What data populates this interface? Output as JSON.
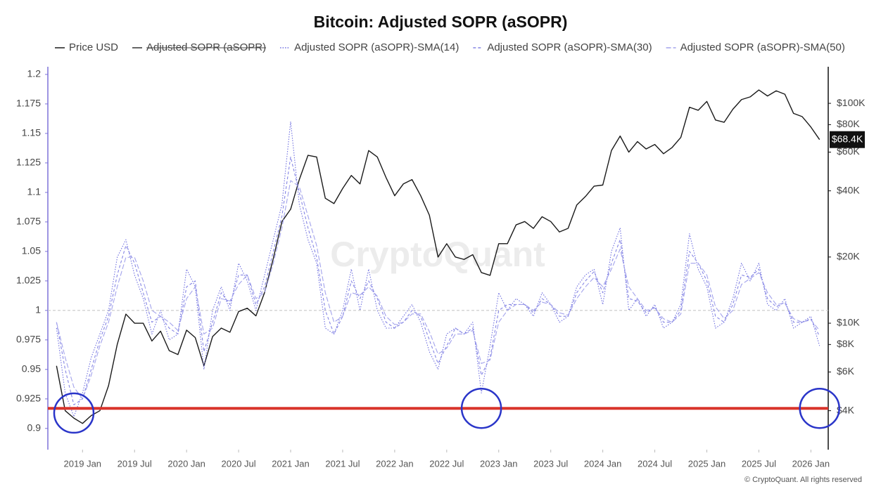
{
  "chart_data": {
    "type": "line",
    "title": "Bitcoin: Adjusted SOPR (aSOPR)",
    "watermark": "CryptoQuant",
    "footer": "© CryptoQuant. All rights reserved",
    "x": [
      "2018-10",
      "2018-11",
      "2018-12",
      "2019-01",
      "2019-02",
      "2019-03",
      "2019-04",
      "2019-05",
      "2019-06",
      "2019-07",
      "2019-08",
      "2019-09",
      "2019-10",
      "2019-11",
      "2019-12",
      "2020-01",
      "2020-02",
      "2020-03",
      "2020-04",
      "2020-05",
      "2020-06",
      "2020-07",
      "2020-08",
      "2020-09",
      "2020-10",
      "2020-11",
      "2020-12",
      "2021-01",
      "2021-02",
      "2021-03",
      "2021-04",
      "2021-05",
      "2021-06",
      "2021-07",
      "2021-08",
      "2021-09",
      "2021-10",
      "2021-11",
      "2021-12",
      "2022-01",
      "2022-02",
      "2022-03",
      "2022-04",
      "2022-05",
      "2022-06",
      "2022-07",
      "2022-08",
      "2022-09",
      "2022-10",
      "2022-11",
      "2022-12",
      "2023-01",
      "2023-02",
      "2023-03",
      "2023-04",
      "2023-05",
      "2023-06",
      "2023-07",
      "2023-08",
      "2023-09",
      "2023-10",
      "2023-11",
      "2023-12",
      "2024-01",
      "2024-02",
      "2024-03",
      "2024-04",
      "2024-05",
      "2024-06",
      "2024-07",
      "2024-08",
      "2024-09",
      "2024-10",
      "2024-11",
      "2024-12",
      "2025-01",
      "2025-02",
      "2025-03",
      "2025-04",
      "2025-05",
      "2025-06",
      "2025-07",
      "2025-08",
      "2025-09",
      "2025-10",
      "2025-11",
      "2025-12",
      "2026-01",
      "2026-02"
    ],
    "xlim": [
      "2018-09",
      "2026-03"
    ],
    "xticks": [
      {
        "value": "2019-01",
        "label": "2019 Jan"
      },
      {
        "value": "2019-07",
        "label": "2019 Jul"
      },
      {
        "value": "2020-01",
        "label": "2020 Jan"
      },
      {
        "value": "2020-07",
        "label": "2020 Jul"
      },
      {
        "value": "2021-01",
        "label": "2021 Jan"
      },
      {
        "value": "2021-07",
        "label": "2021 Jul"
      },
      {
        "value": "2022-01",
        "label": "2022 Jan"
      },
      {
        "value": "2022-07",
        "label": "2022 Jul"
      },
      {
        "value": "2023-01",
        "label": "2023 Jan"
      },
      {
        "value": "2023-07",
        "label": "2023 Jul"
      },
      {
        "value": "2024-01",
        "label": "2024 Jan"
      },
      {
        "value": "2024-07",
        "label": "2024 Jul"
      },
      {
        "value": "2025-01",
        "label": "2025 Jan"
      },
      {
        "value": "2025-07",
        "label": "2025 Jul"
      },
      {
        "value": "2026-01",
        "label": "2026 Jan"
      }
    ],
    "ylim": [
      0.882,
      1.2065
    ],
    "yticks": [
      0.9,
      0.925,
      0.95,
      0.975,
      1,
      1.025,
      1.05,
      1.075,
      1.1,
      1.125,
      1.15,
      1.175,
      1.2
    ],
    "y2scale": "log",
    "y2lim": [
      2660,
      146700
    ],
    "y2ticks": [
      {
        "value": 4000,
        "label": "$4K"
      },
      {
        "value": 6000,
        "label": "$6K"
      },
      {
        "value": 8000,
        "label": "$8K"
      },
      {
        "value": 10000,
        "label": "$10K"
      },
      {
        "value": 20000,
        "label": "$20K"
      },
      {
        "value": 40000,
        "label": "$40K"
      },
      {
        "value": 60000,
        "label": "$60K"
      },
      {
        "value": 80000,
        "label": "$80K"
      },
      {
        "value": 100000,
        "label": "$100K"
      }
    ],
    "last_price": {
      "value": 68400,
      "label": "$68.4K"
    },
    "reference_lines": [
      {
        "value": 1,
        "color": "#c8c8c8",
        "dash": "dashed"
      },
      {
        "value": 0.917,
        "color": "#d9352c",
        "dash": "solid"
      }
    ],
    "circles": [
      {
        "x": "2018-12",
        "y": 0.913,
        "color": "#2a35c9"
      },
      {
        "x": "2022-11",
        "y": 0.917,
        "color": "#2a35c9"
      },
      {
        "x": "2026-02",
        "y": 0.917,
        "color": "#2a35c9"
      }
    ],
    "series": [
      {
        "name": "Price USD",
        "color": "#1a1a1a",
        "dash": "solid",
        "axis": "y2",
        "values": [
          6400,
          4000,
          3700,
          3500,
          3800,
          4000,
          5200,
          8000,
          11000,
          10000,
          10000,
          8300,
          9200,
          7500,
          7200,
          9300,
          8600,
          6400,
          8700,
          9500,
          9100,
          11300,
          11700,
          10800,
          13800,
          19700,
          29000,
          33000,
          45000,
          58000,
          57000,
          37000,
          35000,
          41000,
          47000,
          43000,
          61000,
          57000,
          46000,
          38000,
          43000,
          45000,
          38000,
          31000,
          20000,
          23000,
          20000,
          19500,
          20500,
          17000,
          16500,
          23000,
          23000,
          28000,
          29000,
          27000,
          30500,
          29000,
          26000,
          27000,
          34500,
          37700,
          42000,
          42500,
          61000,
          71000,
          60000,
          67000,
          62000,
          65000,
          59000,
          63000,
          70000,
          96000,
          93000,
          102000,
          84000,
          82000,
          94000,
          104000,
          107000,
          115000,
          108000,
          114000,
          110000,
          90000,
          87000,
          78000,
          68400
        ]
      },
      {
        "name": "Adjusted SOPR (aSOPR)",
        "color": "#333333",
        "dash": "solid",
        "visible": false
      },
      {
        "name": "Adjusted SOPR (aSOPR)-SMA(14)",
        "color": "#6f6fe0",
        "dash": "dotted",
        "values": [
          0.985,
          0.93,
          0.91,
          0.93,
          0.96,
          0.98,
          1.0,
          1.045,
          1.06,
          1.03,
          1.01,
          0.98,
          1.0,
          0.975,
          0.98,
          1.035,
          1.02,
          0.95,
          1.0,
          1.02,
          1.0,
          1.04,
          1.025,
          1.0,
          1.03,
          1.06,
          1.09,
          1.16,
          1.09,
          1.06,
          1.04,
          0.985,
          0.98,
          1.0,
          1.035,
          1.0,
          1.035,
          1.0,
          0.985,
          0.985,
          0.995,
          1.005,
          0.99,
          0.965,
          0.95,
          0.98,
          0.985,
          0.98,
          0.99,
          0.93,
          0.97,
          1.015,
          1.0,
          1.01,
          1.005,
          0.995,
          1.015,
          1.005,
          0.99,
          0.995,
          1.02,
          1.03,
          1.035,
          1.005,
          1.05,
          1.07,
          1.0,
          1.01,
          0.995,
          1.005,
          0.985,
          0.99,
          1.005,
          1.065,
          1.035,
          1.02,
          0.985,
          0.99,
          1.01,
          1.04,
          1.025,
          1.04,
          1.005,
          1.0,
          1.01,
          0.985,
          0.99,
          0.995,
          0.97
        ]
      },
      {
        "name": "Adjusted SOPR (aSOPR)-SMA(30)",
        "color": "#8585e4",
        "dash": "dashed",
        "values": [
          0.99,
          0.95,
          0.92,
          0.925,
          0.95,
          0.975,
          0.995,
          1.03,
          1.055,
          1.04,
          1.015,
          0.99,
          0.995,
          0.985,
          0.98,
          1.02,
          1.025,
          0.965,
          0.99,
          1.015,
          1.005,
          1.03,
          1.03,
          1.005,
          1.02,
          1.05,
          1.08,
          1.13,
          1.1,
          1.07,
          1.045,
          1.0,
          0.98,
          0.995,
          1.025,
          1.01,
          1.025,
          1.01,
          0.99,
          0.985,
          0.99,
          1.0,
          0.995,
          0.975,
          0.955,
          0.97,
          0.985,
          0.98,
          0.985,
          0.945,
          0.96,
          1.0,
          1.005,
          1.005,
          1.005,
          0.998,
          1.01,
          1.005,
          0.995,
          0.995,
          1.015,
          1.025,
          1.033,
          1.015,
          1.04,
          1.06,
          1.01,
          1.008,
          0.998,
          1.003,
          0.99,
          0.99,
          1.0,
          1.05,
          1.04,
          1.025,
          0.995,
          0.99,
          1.005,
          1.03,
          1.028,
          1.035,
          1.01,
          1.003,
          1.007,
          0.99,
          0.99,
          0.993,
          0.978
        ]
      },
      {
        "name": "Adjusted SOPR (aSOPR)-SMA(50)",
        "color": "#a3a3ec",
        "dash": "long-dashed",
        "values": [
          0.99,
          0.96,
          0.935,
          0.925,
          0.945,
          0.97,
          0.99,
          1.02,
          1.045,
          1.045,
          1.025,
          1.0,
          0.995,
          0.99,
          0.983,
          1.01,
          1.02,
          0.98,
          0.985,
          1.01,
          1.008,
          1.022,
          1.03,
          1.01,
          1.015,
          1.04,
          1.07,
          1.11,
          1.105,
          1.08,
          1.055,
          1.015,
          0.99,
          0.995,
          1.015,
          1.013,
          1.02,
          1.012,
          0.995,
          0.988,
          0.99,
          0.997,
          0.997,
          0.982,
          0.963,
          0.968,
          0.98,
          0.98,
          0.983,
          0.955,
          0.958,
          0.99,
          1.0,
          1.005,
          1.005,
          1.0,
          1.007,
          1.005,
          0.998,
          0.996,
          1.01,
          1.02,
          1.028,
          1.02,
          1.035,
          1.052,
          1.02,
          1.01,
          1.0,
          1.002,
          0.993,
          0.99,
          0.997,
          1.04,
          1.04,
          1.03,
          1.003,
          0.993,
          1.0,
          1.022,
          1.027,
          1.032,
          1.015,
          1.005,
          1.006,
          0.993,
          0.99,
          0.992,
          0.983
        ]
      }
    ]
  }
}
